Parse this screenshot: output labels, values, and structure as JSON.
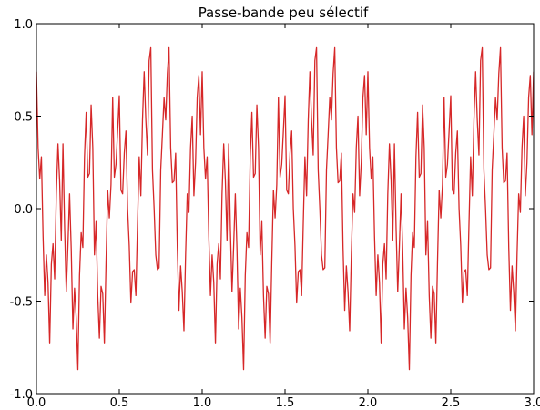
{
  "chart_data": {
    "type": "line",
    "title": "Passe-bande peu sélectif",
    "xlabel": "",
    "ylabel": "",
    "xlim": [
      0.0,
      3.0
    ],
    "ylim": [
      -1.0,
      1.0
    ],
    "x_ticks": [
      "0.0",
      "0.5",
      "1.0",
      "1.5",
      "2.0",
      "2.5",
      "3.0"
    ],
    "y_ticks": [
      "-1.0",
      "-0.5",
      "0.0",
      "0.5",
      "1.0"
    ],
    "grid": false,
    "legend": "none",
    "period": 1.0,
    "series": [
      {
        "color": "#d62728",
        "x": [
          0.0,
          0.01,
          0.02,
          0.03,
          0.04,
          0.05,
          0.06,
          0.07,
          0.08,
          0.09,
          0.1,
          0.11,
          0.12,
          0.13,
          0.14,
          0.15,
          0.16,
          0.17,
          0.18,
          0.19,
          0.2,
          0.21,
          0.22,
          0.23,
          0.24,
          0.25,
          0.26,
          0.27,
          0.28,
          0.29,
          0.3,
          0.31,
          0.32,
          0.33,
          0.34,
          0.35,
          0.36,
          0.37,
          0.38,
          0.39,
          0.4,
          0.41,
          0.42,
          0.43,
          0.44,
          0.45,
          0.46,
          0.47,
          0.48,
          0.49,
          0.5,
          0.51,
          0.52,
          0.53,
          0.54,
          0.55,
          0.56,
          0.57,
          0.58,
          0.59,
          0.6,
          0.61,
          0.62,
          0.63,
          0.64,
          0.65,
          0.66,
          0.67,
          0.68,
          0.69,
          0.7,
          0.71,
          0.72,
          0.73,
          0.74,
          0.75,
          0.76,
          0.77,
          0.78,
          0.79,
          0.8,
          0.81,
          0.82,
          0.83,
          0.84,
          0.85,
          0.86,
          0.87,
          0.88,
          0.89,
          0.9,
          0.91,
          0.92,
          0.93,
          0.94,
          0.95,
          0.96,
          0.97,
          0.98,
          0.99,
          1.0
        ],
        "y": [
          0.74,
          0.33,
          0.16,
          0.28,
          -0.15,
          -0.47,
          -0.25,
          -0.4,
          -0.73,
          -0.3,
          -0.19,
          -0.38,
          0.08,
          0.35,
          0.15,
          -0.17,
          0.35,
          -0.1,
          -0.45,
          -0.2,
          0.08,
          -0.22,
          -0.65,
          -0.43,
          -0.59,
          -0.87,
          -0.36,
          -0.13,
          -0.21,
          0.28,
          0.52,
          0.17,
          0.19,
          0.56,
          0.33,
          -0.25,
          -0.07,
          -0.47,
          -0.7,
          -0.42,
          -0.46,
          -0.73,
          -0.29,
          0.1,
          -0.05,
          0.13,
          0.6,
          0.17,
          0.24,
          0.42,
          0.61,
          0.1,
          0.08,
          0.3,
          0.42,
          0.0,
          -0.2,
          -0.51,
          -0.34,
          -0.33,
          -0.47,
          -0.08,
          0.28,
          0.07,
          0.48,
          0.74,
          0.48,
          0.29,
          0.8,
          0.87,
          0.21,
          0.0,
          -0.25,
          -0.33,
          -0.32,
          0.21,
          0.4,
          0.6,
          0.48,
          0.73,
          0.87,
          0.33,
          0.14,
          0.15,
          0.3,
          -0.21,
          -0.55,
          -0.31,
          -0.45,
          -0.66,
          -0.25,
          0.08,
          -0.02,
          0.33,
          0.5,
          0.07,
          0.25,
          0.6,
          0.72,
          0.4,
          0.74
        ]
      }
    ]
  }
}
